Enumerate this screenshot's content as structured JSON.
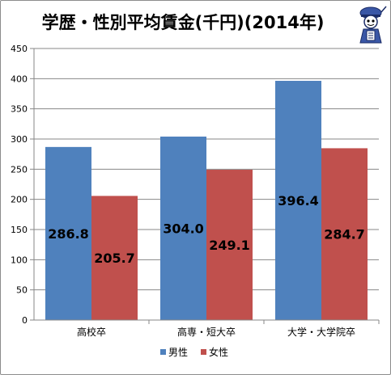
{
  "chart_data": {
    "type": "bar",
    "title": "学歴・性別平均賃金(千円)(2014年)",
    "categories": [
      "高校卒",
      "高専・短大卒",
      "大学・大学院卒"
    ],
    "series": [
      {
        "name": "男性",
        "values": [
          286.8,
          304.0,
          396.4
        ],
        "labels": [
          "286.8",
          "304.0",
          "396.4"
        ],
        "color": "#4f81bd"
      },
      {
        "name": "女性",
        "values": [
          205.7,
          249.1,
          284.7
        ],
        "labels": [
          "205.7",
          "249.1",
          "284.7"
        ],
        "color": "#c0504d"
      }
    ],
    "ylim": [
      0,
      450
    ],
    "yticks": [
      "0",
      "50",
      "100",
      "150",
      "200",
      "250",
      "300",
      "350",
      "400",
      "450"
    ],
    "grid": true,
    "legend": "bottom",
    "xlabel": "",
    "ylabel": ""
  },
  "colors": {
    "grid": "#878787",
    "axis": "#878787"
  },
  "icons": [
    "mascot-logo-icon"
  ]
}
